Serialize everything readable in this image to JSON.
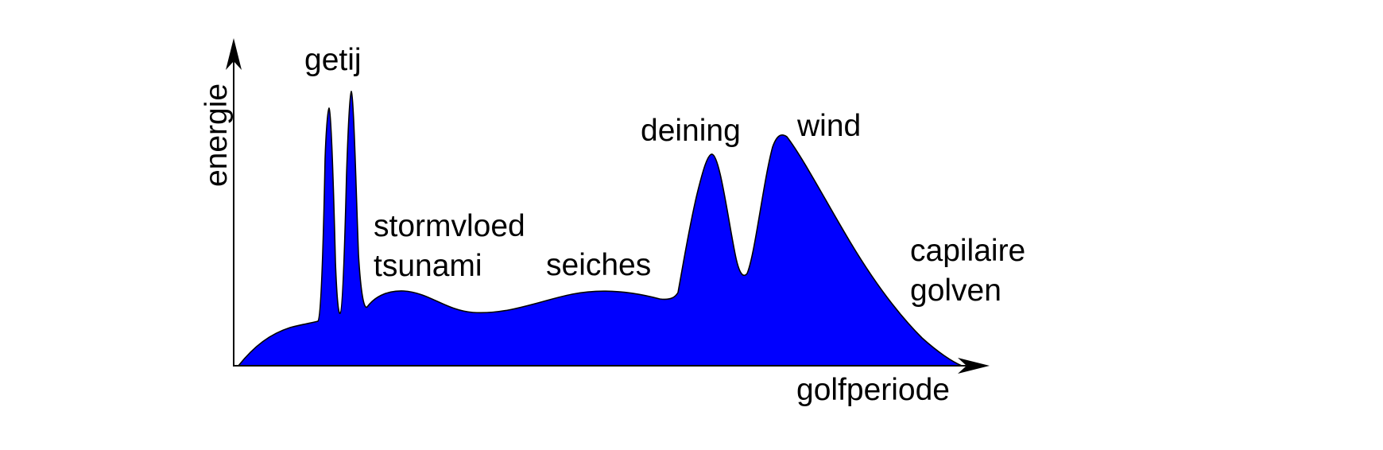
{
  "axes": {
    "y_label": "energie",
    "x_label": "golfperiode"
  },
  "labels": {
    "getij": "getij",
    "stormvloed": "stormvloed",
    "tsunami": "tsunami",
    "seiches": "seiches",
    "deining": "deining",
    "wind": "wind",
    "capilaire": "capilaire",
    "golven": "golven"
  },
  "colors": {
    "fill": "#0000ff",
    "outline": "#000000",
    "axis": "#000000"
  }
}
